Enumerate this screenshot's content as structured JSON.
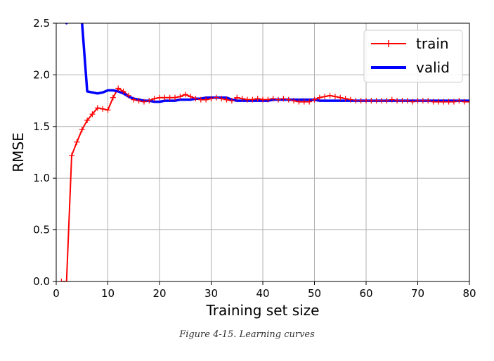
{
  "chart_data": {
    "type": "line",
    "xlabel": "Training set size",
    "ylabel": "RMSE",
    "xlim": [
      0,
      80
    ],
    "ylim": [
      0,
      2.5
    ],
    "xticks": [
      0,
      10,
      20,
      30,
      40,
      50,
      60,
      70,
      80
    ],
    "yticks": [
      0.0,
      0.5,
      1.0,
      1.5,
      2.0,
      2.5
    ],
    "xtick_labels": [
      "0",
      "10",
      "20",
      "30",
      "40",
      "50",
      "60",
      "70",
      "80"
    ],
    "ytick_labels": [
      "0.0",
      "0.5",
      "1.0",
      "1.5",
      "2.0",
      "2.5"
    ],
    "grid": true,
    "legend_position": "top-right",
    "series": [
      {
        "name": "train",
        "color": "#ff0000",
        "marker": "plus",
        "x": [
          1,
          2,
          3,
          4,
          5,
          6,
          7,
          8,
          9,
          10,
          11,
          12,
          13,
          14,
          15,
          16,
          17,
          18,
          19,
          20,
          21,
          22,
          23,
          24,
          25,
          26,
          27,
          28,
          29,
          30,
          31,
          32,
          33,
          34,
          35,
          36,
          37,
          38,
          39,
          40,
          41,
          42,
          43,
          44,
          45,
          46,
          47,
          48,
          49,
          50,
          51,
          52,
          53,
          54,
          55,
          56,
          57,
          58,
          59,
          60,
          61,
          62,
          63,
          64,
          65,
          66,
          67,
          68,
          69,
          70,
          71,
          72,
          73,
          74,
          75,
          76,
          77,
          78,
          79,
          80
        ],
        "y": [
          0.0,
          0.0,
          1.22,
          1.35,
          1.47,
          1.56,
          1.62,
          1.68,
          1.67,
          1.66,
          1.78,
          1.87,
          1.84,
          1.8,
          1.76,
          1.75,
          1.74,
          1.75,
          1.77,
          1.78,
          1.78,
          1.78,
          1.78,
          1.79,
          1.81,
          1.79,
          1.77,
          1.76,
          1.76,
          1.77,
          1.78,
          1.77,
          1.76,
          1.75,
          1.78,
          1.77,
          1.76,
          1.76,
          1.77,
          1.76,
          1.76,
          1.77,
          1.76,
          1.77,
          1.76,
          1.75,
          1.74,
          1.74,
          1.74,
          1.76,
          1.78,
          1.79,
          1.8,
          1.79,
          1.78,
          1.77,
          1.76,
          1.75,
          1.75,
          1.75,
          1.75,
          1.75,
          1.75,
          1.75,
          1.76,
          1.75,
          1.75,
          1.75,
          1.74,
          1.75,
          1.75,
          1.75,
          1.74,
          1.74,
          1.74,
          1.74,
          1.74,
          1.75,
          1.74,
          1.74
        ]
      },
      {
        "name": "valid",
        "color": "#0000ff",
        "marker": "none",
        "x": [
          1,
          2,
          3,
          4,
          5,
          6,
          7,
          8,
          9,
          10,
          11,
          12,
          13,
          14,
          15,
          16,
          17,
          18,
          19,
          20,
          21,
          22,
          23,
          24,
          25,
          26,
          27,
          28,
          29,
          30,
          31,
          32,
          33,
          34,
          35,
          36,
          37,
          38,
          39,
          40,
          41,
          42,
          43,
          44,
          45,
          46,
          47,
          48,
          49,
          50,
          51,
          52,
          53,
          54,
          55,
          56,
          57,
          58,
          59,
          60,
          61,
          62,
          63,
          64,
          65,
          66,
          67,
          68,
          69,
          70,
          71,
          72,
          73,
          74,
          75,
          76,
          77,
          78,
          79,
          80
        ],
        "y": [
          4.2,
          2.5,
          3.5,
          4.3,
          2.5,
          1.84,
          1.83,
          1.82,
          1.83,
          1.85,
          1.85,
          1.84,
          1.82,
          1.79,
          1.77,
          1.76,
          1.75,
          1.75,
          1.74,
          1.74,
          1.75,
          1.75,
          1.75,
          1.76,
          1.76,
          1.76,
          1.77,
          1.77,
          1.78,
          1.78,
          1.78,
          1.78,
          1.78,
          1.76,
          1.75,
          1.75,
          1.75,
          1.75,
          1.75,
          1.75,
          1.75,
          1.76,
          1.76,
          1.76,
          1.76,
          1.76,
          1.76,
          1.76,
          1.76,
          1.76,
          1.75,
          1.75,
          1.75,
          1.75,
          1.75,
          1.75,
          1.75,
          1.75,
          1.75,
          1.75,
          1.75,
          1.75,
          1.75,
          1.75,
          1.75,
          1.75,
          1.75,
          1.75,
          1.75,
          1.75,
          1.75,
          1.75,
          1.75,
          1.75,
          1.75,
          1.75,
          1.75,
          1.75,
          1.75,
          1.75
        ]
      }
    ]
  },
  "caption": "Figure 4-15. Learning curves"
}
